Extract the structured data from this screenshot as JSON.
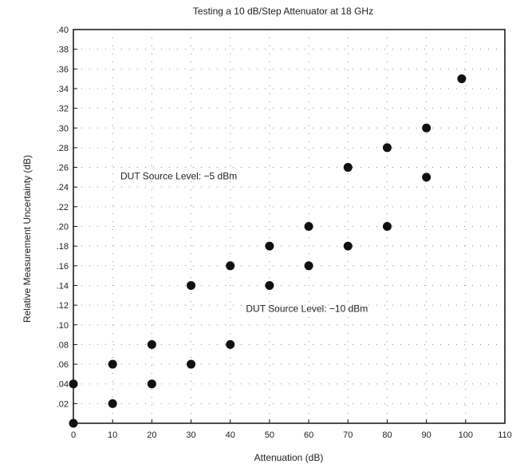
{
  "chart_data": {
    "type": "scatter",
    "title": "Testing a 10 dB/Step Attenuator at 18 GHz",
    "xlabel": "Attenuation (dB)",
    "ylabel": "Relative Measurement Uncertainty (dB)",
    "xlim": [
      0,
      110
    ],
    "ylim": [
      0,
      0.4
    ],
    "x_ticks": [
      0,
      10,
      20,
      30,
      40,
      50,
      60,
      70,
      80,
      90,
      100,
      110
    ],
    "y_ticks": [
      0.02,
      0.04,
      0.06,
      0.08,
      0.1,
      0.12,
      0.14,
      0.16,
      0.18,
      0.2,
      0.22,
      0.24,
      0.26,
      0.28,
      0.3,
      0.32,
      0.34,
      0.36,
      0.38,
      0.4
    ],
    "y_tick_labels": [
      ".02",
      ".04",
      ".06",
      ".08",
      ".10",
      ".12",
      ".14",
      ".16",
      ".18",
      ".20",
      ".22",
      ".24",
      ".26",
      ".28",
      ".30",
      ".32",
      ".34",
      ".36",
      ".38",
      ".40"
    ],
    "grid": "dotted",
    "annotations": [
      {
        "text": "DUT Source Level: −5 dBm",
        "x": 12,
        "y": 0.248
      },
      {
        "text": "DUT Source Level: −10 dBm",
        "x": 44,
        "y": 0.113
      }
    ],
    "series": [
      {
        "points": [
          {
            "x": 0,
            "y": 0.0
          },
          {
            "x": 10,
            "y": 0.06
          },
          {
            "x": 20,
            "y": 0.08
          },
          {
            "x": 30,
            "y": 0.14
          },
          {
            "x": 40,
            "y": 0.16
          },
          {
            "x": 50,
            "y": 0.18
          },
          {
            "x": 60,
            "y": 0.2
          },
          {
            "x": 70,
            "y": 0.26
          },
          {
            "x": 80,
            "y": 0.28
          },
          {
            "x": 90,
            "y": 0.3
          },
          {
            "x": 99,
            "y": 0.35
          }
        ]
      },
      {
        "points": [
          {
            "x": 0,
            "y": 0.04
          },
          {
            "x": 10,
            "y": 0.02
          },
          {
            "x": 20,
            "y": 0.04
          },
          {
            "x": 30,
            "y": 0.06
          },
          {
            "x": 40,
            "y": 0.08
          },
          {
            "x": 50,
            "y": 0.14
          },
          {
            "x": 60,
            "y": 0.16
          },
          {
            "x": 70,
            "y": 0.18
          },
          {
            "x": 80,
            "y": 0.2
          },
          {
            "x": 90,
            "y": 0.25
          }
        ]
      }
    ]
  }
}
